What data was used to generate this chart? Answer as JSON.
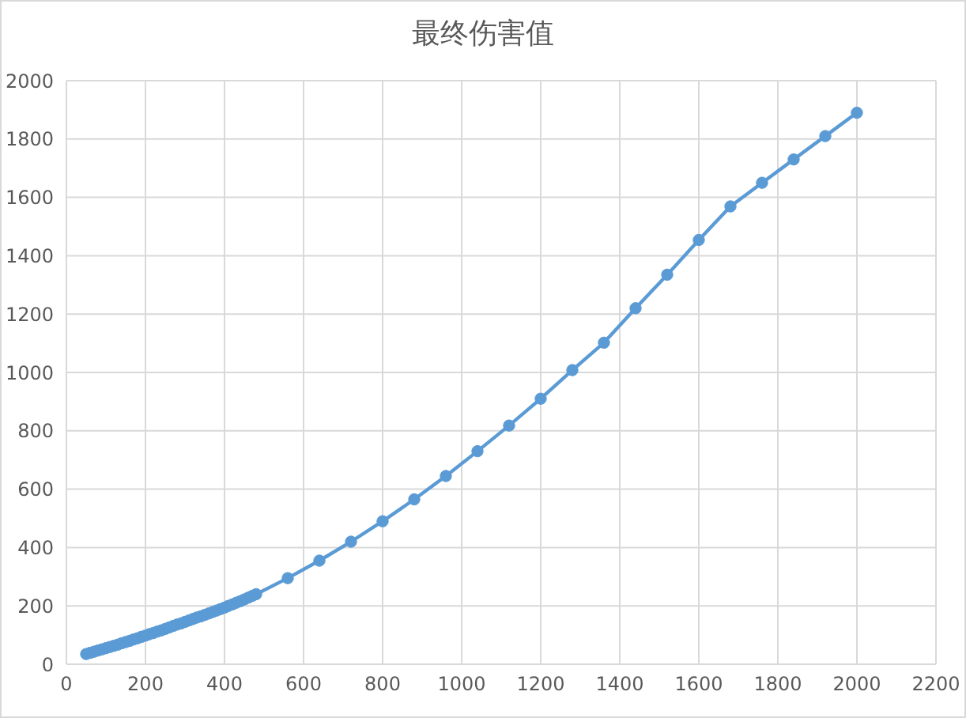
{
  "chart_data": {
    "type": "line",
    "title": "最终伤害值",
    "x": [
      50,
      60,
      70,
      80,
      90,
      100,
      110,
      120,
      130,
      140,
      150,
      160,
      170,
      180,
      190,
      200,
      210,
      220,
      230,
      240,
      250,
      260,
      270,
      280,
      290,
      300,
      310,
      320,
      330,
      340,
      350,
      360,
      370,
      380,
      390,
      400,
      410,
      420,
      430,
      440,
      450,
      460,
      470,
      480,
      560,
      640,
      720,
      800,
      880,
      960,
      1040,
      1120,
      1200,
      1280,
      1360,
      1440,
      1520,
      1600,
      1680,
      1760,
      1840,
      1920,
      2000
    ],
    "series": [
      {
        "color": "#5b9bd5",
        "values": [
          35,
          39,
          43,
          47,
          51,
          55,
          59,
          63,
          67,
          72,
          76,
          80,
          85,
          89,
          94,
          98,
          103,
          107,
          112,
          116,
          121,
          126,
          131,
          136,
          140,
          145,
          150,
          155,
          160,
          164,
          169,
          174,
          179,
          184,
          189,
          194,
          200,
          205,
          211,
          216,
          222,
          228,
          234,
          240,
          295,
          355,
          420,
          490,
          565,
          645,
          730,
          818,
          910,
          1008,
          1102,
          1220,
          1335,
          1454,
          1569,
          1650,
          1730,
          1810,
          1890
        ]
      }
    ],
    "xlim": [
      0,
      2200
    ],
    "xticks": [
      0,
      200,
      400,
      600,
      800,
      1000,
      1200,
      1400,
      1600,
      1800,
      2000,
      2200
    ],
    "ylim": [
      0,
      2000
    ],
    "yticks": [
      0,
      200,
      400,
      600,
      800,
      1000,
      1200,
      1400,
      1600,
      1800,
      2000
    ],
    "grid": true,
    "marker": "circle",
    "line_style": "solid"
  }
}
